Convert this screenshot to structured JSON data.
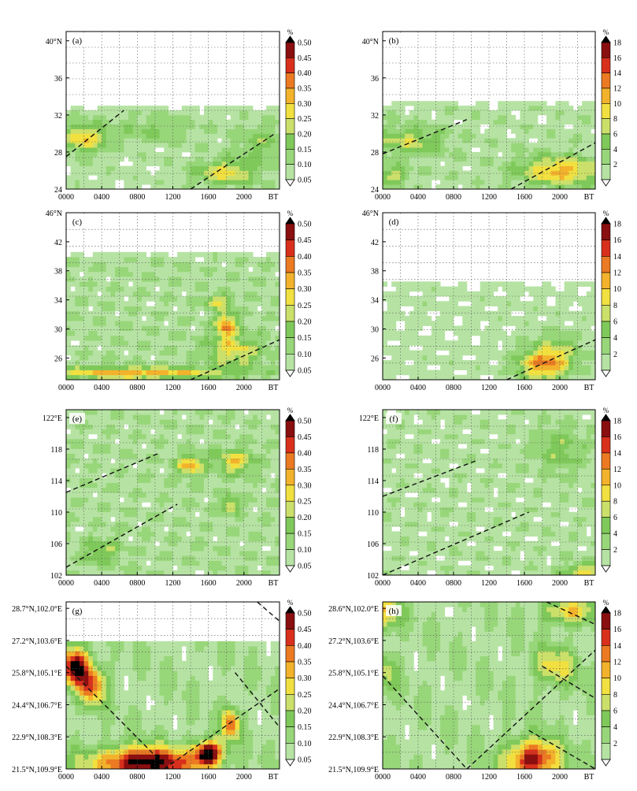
{
  "figure": {
    "x_unit": "BT",
    "colorbar_unit": "%"
  },
  "chart_data": [
    {
      "id": "a",
      "panel_label": "(a)",
      "type": "heatmap",
      "x_ticks": [
        "0000",
        "0400",
        "0800",
        "1200",
        "1600",
        "2000"
      ],
      "y_ticks": [
        "24",
        "28",
        "32",
        "36",
        "40°N"
      ],
      "ylim": [
        24,
        41
      ],
      "y_values": [
        24,
        28,
        32,
        36,
        40
      ],
      "colorbar_levels": [
        "0.05",
        "0.10",
        "0.15",
        "0.20",
        "0.25",
        "0.30",
        "0.35",
        "0.40",
        "0.45",
        "0.50"
      ],
      "colorbar_colors": [
        "#ffffff",
        "#b6e3a3",
        "#98d67a",
        "#7fc95a",
        "#cbe06a",
        "#f1e040",
        "#f3b22c",
        "#eb7a22",
        "#d8301c",
        "#8a0f10",
        "#000000"
      ],
      "description_lines": [
        [
          [
            0,
            27.5
          ],
          [
            6.5,
            32.5
          ]
        ],
        [
          [
            14,
            24
          ],
          [
            23.5,
            30
          ]
        ]
      ],
      "field": {
        "base": 0.08,
        "blobs": [
          [
            2,
            29.5,
            2.4,
            1.6,
            0.22
          ],
          [
            18,
            25.8,
            3.5,
            1.4,
            0.2
          ],
          [
            10,
            30.5,
            5,
            1.5,
            0.08
          ],
          [
            22,
            29,
            3,
            2,
            0.1
          ]
        ],
        "cutoff_y": 32.5
      }
    },
    {
      "id": "b",
      "panel_label": "(b)",
      "type": "heatmap",
      "x_ticks": [
        "0000",
        "0400",
        "0800",
        "1200",
        "1600",
        "2000"
      ],
      "y_ticks": [
        "24",
        "28",
        "32",
        "36",
        "40°N"
      ],
      "ylim": [
        24,
        41
      ],
      "y_values": [
        24,
        28,
        32,
        36,
        40
      ],
      "colorbar_levels": [
        "2",
        "4",
        "6",
        "8",
        "10",
        "12",
        "14",
        "16",
        "18"
      ],
      "colorbar_colors": [
        "#ffffff",
        "#b6e3a3",
        "#98d67a",
        "#7fc95a",
        "#cbe06a",
        "#f1e040",
        "#f3b22c",
        "#eb7a22",
        "#d8301c",
        "#8a0f10",
        "#000000"
      ],
      "description_lines": [
        [
          [
            0,
            27.8
          ],
          [
            9.5,
            31.5
          ]
        ],
        [
          [
            14.5,
            24
          ],
          [
            24,
            29
          ]
        ]
      ],
      "field": {
        "base": 3.5,
        "blobs": [
          [
            3,
            29.2,
            4,
            1.5,
            6
          ],
          [
            20,
            26,
            4.5,
            1.5,
            10
          ],
          [
            1,
            25.5,
            2,
            1,
            6
          ]
        ],
        "cutoff_y": 33
      }
    },
    {
      "id": "c",
      "panel_label": "(c)",
      "type": "heatmap",
      "x_ticks": [
        "0000",
        "0400",
        "0800",
        "1200",
        "1600",
        "2000"
      ],
      "y_ticks": [
        "26",
        "30",
        "34",
        "38",
        "42",
        "46°N"
      ],
      "ylim": [
        23,
        46
      ],
      "y_values": [
        26,
        30,
        34,
        38,
        42,
        46
      ],
      "colorbar_levels": [
        "0.05",
        "0.10",
        "0.15",
        "0.20",
        "0.25",
        "0.30",
        "0.35",
        "0.40",
        "0.45",
        "0.50"
      ],
      "colorbar_colors": [
        "#ffffff",
        "#b6e3a3",
        "#98d67a",
        "#7fc95a",
        "#cbe06a",
        "#f1e040",
        "#f3b22c",
        "#eb7a22",
        "#d8301c",
        "#8a0f10",
        "#000000"
      ],
      "description_lines": [
        [
          [
            14,
            23
          ],
          [
            24,
            28.5
          ]
        ]
      ],
      "field": {
        "base": 0.1,
        "blobs": [
          [
            18,
            30.5,
            1.2,
            1.8,
            0.28
          ],
          [
            19,
            27,
            3,
            2,
            0.18
          ],
          [
            8,
            24,
            10,
            0.8,
            0.25
          ],
          [
            17,
            33.8,
            1.5,
            0.8,
            0.2
          ]
        ],
        "cutoff_y": 40
      }
    },
    {
      "id": "d",
      "panel_label": "(d)",
      "type": "heatmap",
      "x_ticks": [
        "0000",
        "0400",
        "0800",
        "1200",
        "1600",
        "2000"
      ],
      "y_ticks": [
        "26",
        "30",
        "34",
        "38",
        "42",
        "46°N"
      ],
      "ylim": [
        23,
        46
      ],
      "y_values": [
        26,
        30,
        34,
        38,
        42,
        46
      ],
      "colorbar_levels": [
        "2",
        "4",
        "6",
        "8",
        "10",
        "12",
        "14",
        "16",
        "18"
      ],
      "colorbar_colors": [
        "#ffffff",
        "#b6e3a3",
        "#98d67a",
        "#7fc95a",
        "#cbe06a",
        "#f1e040",
        "#f3b22c",
        "#eb7a22",
        "#d8301c",
        "#8a0f10",
        "#000000"
      ],
      "description_lines": [
        [
          [
            14,
            23
          ],
          [
            24,
            28.5
          ]
        ]
      ],
      "field": {
        "base": 3,
        "blobs": [
          [
            18,
            25,
            3,
            2,
            10
          ],
          [
            19.5,
            27,
            3,
            2.5,
            5
          ]
        ],
        "cutoff_y": 36
      }
    },
    {
      "id": "e",
      "panel_label": "(e)",
      "type": "heatmap",
      "x_ticks": [
        "0000",
        "0400",
        "0800",
        "1200",
        "1600",
        "2000"
      ],
      "y_ticks": [
        "102",
        "106",
        "110",
        "114",
        "118",
        "122°E"
      ],
      "ylim": [
        102,
        123
      ],
      "y_values": [
        102,
        106,
        110,
        114,
        118,
        122
      ],
      "colorbar_levels": [
        "0.05",
        "0.10",
        "0.15",
        "0.20",
        "0.25",
        "0.30",
        "0.35",
        "0.40",
        "0.45",
        "0.50"
      ],
      "colorbar_colors": [
        "#ffffff",
        "#b6e3a3",
        "#98d67a",
        "#7fc95a",
        "#cbe06a",
        "#f1e040",
        "#f3b22c",
        "#eb7a22",
        "#d8301c",
        "#8a0f10",
        "#000000"
      ],
      "description_lines": [
        [
          [
            0,
            112.5
          ],
          [
            10.5,
            117.5
          ]
        ],
        [
          [
            0,
            103
          ],
          [
            12.5,
            111
          ]
        ]
      ],
      "field": {
        "base": 0.1,
        "blobs": [
          [
            14,
            116,
            1.5,
            1.2,
            0.25
          ],
          [
            19,
            116.5,
            2,
            1.5,
            0.2
          ],
          [
            18.5,
            111,
            1,
            1,
            0.2
          ],
          [
            4,
            105,
            2,
            1.5,
            0.12
          ]
        ],
        "cutoff_y": 200
      }
    },
    {
      "id": "f",
      "panel_label": "(f)",
      "type": "heatmap",
      "x_ticks": [
        "0000",
        "0400",
        "0800",
        "1200",
        "1600",
        "2000"
      ],
      "y_ticks": [
        "102",
        "106",
        "110",
        "114",
        "118",
        "122°E"
      ],
      "ylim": [
        102,
        123
      ],
      "y_values": [
        102,
        106,
        110,
        114,
        118,
        122
      ],
      "colorbar_levels": [
        "2",
        "4",
        "6",
        "8",
        "10",
        "12",
        "14",
        "16",
        "18"
      ],
      "colorbar_colors": [
        "#ffffff",
        "#b6e3a3",
        "#98d67a",
        "#7fc95a",
        "#cbe06a",
        "#f1e040",
        "#f3b22c",
        "#eb7a22",
        "#d8301c",
        "#8a0f10",
        "#000000"
      ],
      "description_lines": [
        [
          [
            0,
            112
          ],
          [
            10.5,
            116.5
          ]
        ],
        [
          [
            0,
            102
          ],
          [
            16.5,
            110
          ]
        ]
      ],
      "field": {
        "base": 3.5,
        "blobs": [
          [
            20,
            118,
            3,
            3,
            4
          ],
          [
            23,
            102.5,
            2.5,
            1,
            8
          ]
        ],
        "cutoff_y": 200
      }
    },
    {
      "id": "g",
      "panel_label": "(g)",
      "type": "heatmap",
      "x_ticks": [
        "0000",
        "0400",
        "0800",
        "1200",
        "1600",
        "2000"
      ],
      "y_ticks": [
        "21.5°N,109.9°E",
        "22.9°N,108.3°E",
        "24.4°N,106.7°E",
        "25.8°N,105.1°E",
        "27.2°N,103.6°E",
        "28.7°N,102.0°E"
      ],
      "ylim": [
        0,
        5.2
      ],
      "y_values": [
        0,
        1,
        2,
        3,
        4,
        5
      ],
      "colorbar_levels": [
        "0.05",
        "0.10",
        "0.15",
        "0.20",
        "0.25",
        "0.30",
        "0.35",
        "0.40",
        "0.45",
        "0.50"
      ],
      "colorbar_colors": [
        "#ffffff",
        "#b6e3a3",
        "#98d67a",
        "#7fc95a",
        "#cbe06a",
        "#f1e040",
        "#f3b22c",
        "#eb7a22",
        "#d8301c",
        "#8a0f10",
        "#000000"
      ],
      "description_lines": [
        [
          [
            0,
            3.2
          ],
          [
            11.5,
            0
          ]
        ],
        [
          [
            11,
            0
          ],
          [
            24,
            2.5
          ]
        ],
        [
          [
            19,
            3
          ],
          [
            24,
            1.3
          ]
        ],
        [
          [
            21.5,
            5.2
          ],
          [
            24,
            4.6
          ]
        ]
      ],
      "field": {
        "base": 0.1,
        "blobs": [
          [
            1,
            3.2,
            1.5,
            0.6,
            0.45
          ],
          [
            3,
            2.6,
            1.5,
            0.6,
            0.3
          ],
          [
            9,
            0.2,
            6,
            0.5,
            0.45
          ],
          [
            16,
            0.5,
            1.5,
            0.4,
            0.45
          ],
          [
            18.5,
            1.4,
            1,
            0.5,
            0.3
          ]
        ],
        "cutoff_y": 100,
        "cutoff_top": 4.0
      }
    },
    {
      "id": "h",
      "panel_label": "(h)",
      "type": "heatmap",
      "x_ticks": [
        "0000",
        "0400",
        "0800",
        "1200",
        "1600",
        "2000"
      ],
      "y_ticks": [
        "21.5°N,109.9°E",
        "22.9°N,108.3°E",
        "24.4°N,106.7°E",
        "25.8°N,105.1°E",
        "27.2°N,103.6°E",
        "28.6°N,102.0°E"
      ],
      "ylim": [
        0,
        5.2
      ],
      "y_values": [
        0,
        1,
        2,
        3,
        4,
        5
      ],
      "colorbar_levels": [
        "2",
        "4",
        "6",
        "8",
        "10",
        "12",
        "14",
        "16",
        "18"
      ],
      "colorbar_colors": [
        "#ffffff",
        "#b6e3a3",
        "#98d67a",
        "#7fc95a",
        "#cbe06a",
        "#f1e040",
        "#f3b22c",
        "#eb7a22",
        "#d8301c",
        "#8a0f10",
        "#000000"
      ],
      "description_lines": [
        [
          [
            0,
            2.9
          ],
          [
            9.5,
            0
          ]
        ],
        [
          [
            9.5,
            0
          ],
          [
            24,
            3.7
          ]
        ],
        [
          [
            16.5,
            1.2
          ],
          [
            24,
            0
          ]
        ],
        [
          [
            18.5,
            5.2
          ],
          [
            24,
            4.5
          ]
        ],
        [
          [
            18,
            3.2
          ],
          [
            24,
            2.2
          ]
        ]
      ],
      "field": {
        "base": 4,
        "blobs": [
          [
            0.5,
            4.9,
            1.5,
            0.6,
            8
          ],
          [
            17,
            0.3,
            3,
            0.6,
            16
          ],
          [
            19.5,
            3.2,
            2.5,
            0.6,
            7
          ],
          [
            0.5,
            3,
            1.2,
            0.6,
            5
          ],
          [
            21,
            4.9,
            3,
            0.4,
            8
          ]
        ],
        "cutoff_y": 100
      }
    }
  ]
}
